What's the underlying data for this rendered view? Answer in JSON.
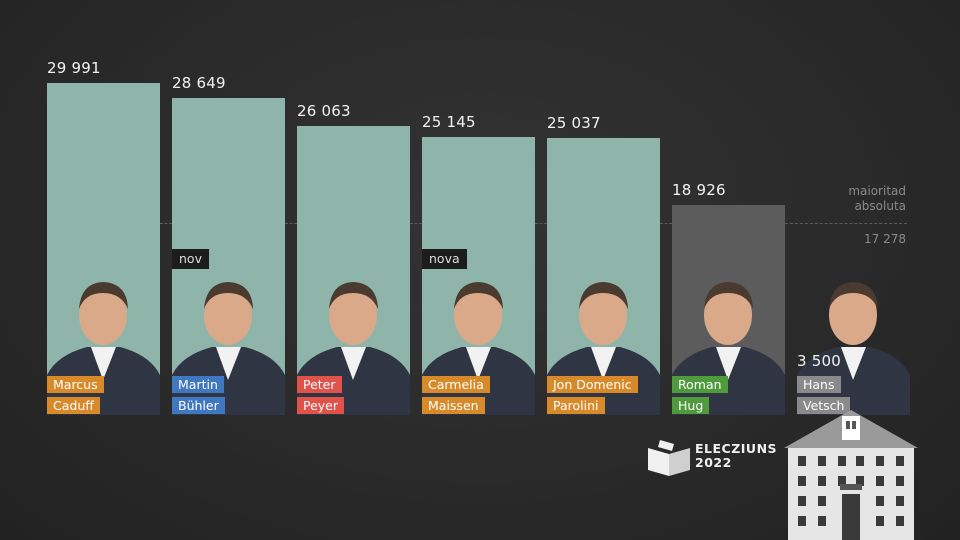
{
  "chart_data": {
    "type": "bar",
    "categories": [
      "Marcus Caduff",
      "Martin Bühler",
      "Peter Peyer",
      "Carmelia Maissen",
      "Jon Domenic Parolini",
      "Roman Hug",
      "Hans Vetsch"
    ],
    "values": [
      29991,
      28649,
      26063,
      25145,
      25037,
      18926,
      3500
    ],
    "value_labels": [
      "29 991",
      "28 649",
      "26 063",
      "25 145",
      "25 037",
      "18 926",
      "3 500"
    ],
    "ylim": [
      0,
      29991
    ],
    "reference_line": {
      "value": 17278,
      "label_lines": [
        "maioritad",
        "absoluta"
      ],
      "value_label": "17 278"
    },
    "legend": "none",
    "grid": false
  },
  "candidates": [
    {
      "first": "Marcus",
      "last": "Caduff",
      "party_color": "#d88a2a",
      "elected": true,
      "new_label": ""
    },
    {
      "first": "Martin",
      "last": "Bühler",
      "party_color": "#3f78c0",
      "elected": true,
      "new_label": "nov"
    },
    {
      "first": "Peter",
      "last": "Peyer",
      "party_color": "#e0524a",
      "elected": true,
      "new_label": ""
    },
    {
      "first": "Carmelia",
      "last": "Maissen",
      "party_color": "#d88a2a",
      "elected": true,
      "new_label": "nova"
    },
    {
      "first": "Jon Domenic",
      "last": "Parolini",
      "party_color": "#d88a2a",
      "elected": true,
      "new_label": ""
    },
    {
      "first": "Roman",
      "last": "Hug",
      "party_color": "#4e9a3c",
      "elected": false,
      "new_label": ""
    },
    {
      "first": "Hans",
      "last": "Vetsch",
      "party_color": "#8a8a8a",
      "elected": false,
      "new_label": ""
    }
  ],
  "colors": {
    "elected_bar": "#8fb5aa",
    "not_elected_bar": "#5c5c5c",
    "background": "#2b2b2b"
  },
  "branding": {
    "line1": "ELECZIUNS",
    "line2": "2022"
  }
}
